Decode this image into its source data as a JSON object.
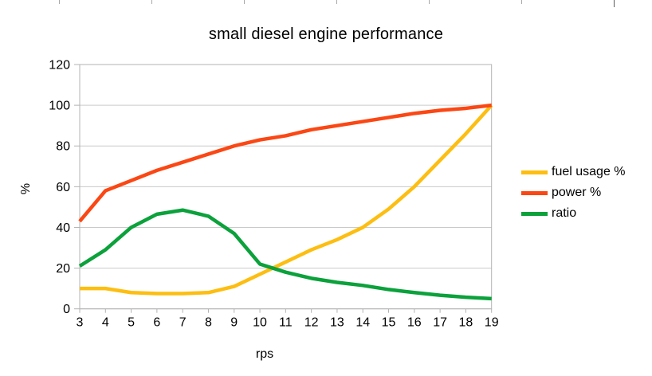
{
  "page": {
    "background": "#ffffff",
    "top_ruler_ticks_x": [
      74,
      190,
      306,
      422,
      538,
      654,
      770
    ]
  },
  "chart_data": {
    "type": "line",
    "title": "small diesel engine performance",
    "xlabel": "rps",
    "ylabel": "%",
    "x": [
      3,
      4,
      5,
      6,
      7,
      8,
      9,
      10,
      11,
      12,
      13,
      14,
      15,
      16,
      17,
      18,
      19
    ],
    "series": [
      {
        "name": "fuel usage %",
        "color": "#fdbe12",
        "values": [
          10,
          10,
          8,
          7.5,
          7.5,
          8,
          11,
          17,
          23,
          29,
          34,
          40,
          49,
          60,
          73,
          86,
          100
        ]
      },
      {
        "name": "power %",
        "color": "#fb4714",
        "values": [
          43,
          58,
          63,
          68,
          72,
          76,
          80,
          83,
          85,
          88,
          90,
          92,
          94,
          96,
          97.5,
          98.5,
          100
        ]
      },
      {
        "name": "ratio",
        "color": "#0ba13b",
        "values": [
          21,
          29,
          40,
          46.5,
          48.5,
          45.5,
          37,
          22,
          18,
          15,
          13,
          11.5,
          9.5,
          8,
          6.7,
          5.7,
          5
        ]
      }
    ],
    "ylim": [
      0,
      120
    ],
    "y_ticks": [
      0,
      20,
      40,
      60,
      80,
      100,
      120
    ],
    "grid": "horizontal-only",
    "legend_position": "right",
    "axis_color": "#b3b3b3",
    "gridline_color": "#c9c9c9",
    "label_color": "#000000"
  }
}
